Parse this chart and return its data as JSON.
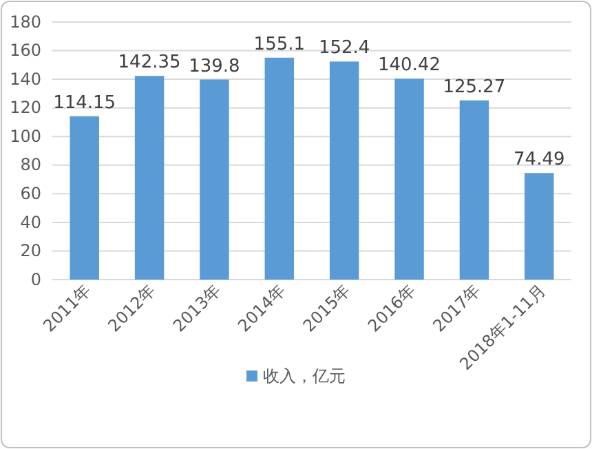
{
  "chart_data": {
    "type": "bar",
    "categories": [
      "2011年",
      "2012年",
      "2013年",
      "2014年",
      "2015年",
      "2016年",
      "2017年",
      "2018年1-11月"
    ],
    "series": [
      {
        "name": "收入，亿元",
        "color": "#5b9bd5",
        "values": [
          114.15,
          142.35,
          139.8,
          155.1,
          152.4,
          140.42,
          125.27,
          74.49
        ]
      }
    ],
    "ylim": [
      0,
      180
    ],
    "yticks": [
      0,
      20,
      40,
      60,
      80,
      100,
      120,
      140,
      160,
      180
    ],
    "grid": "y",
    "legend": "bottom",
    "data_labels": true
  }
}
